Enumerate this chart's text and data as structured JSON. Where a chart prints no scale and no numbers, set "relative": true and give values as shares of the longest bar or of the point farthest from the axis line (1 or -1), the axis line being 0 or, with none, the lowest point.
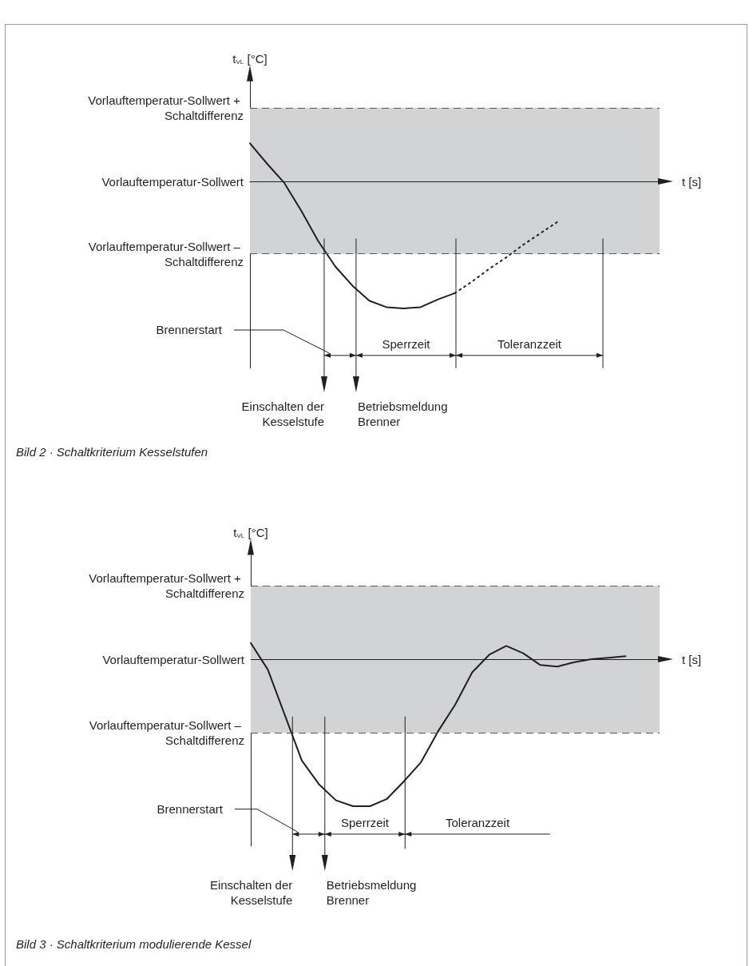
{
  "chart_data": [
    {
      "type": "line",
      "relative": true,
      "title": "Bild 2 · Schaltkriterium Kesselstufen",
      "xlabel": "t [s]",
      "ylabel": "t$_{VL}$ [°C]",
      "marker": "none",
      "line_style": "solid",
      "categories": [
        null,
        null,
        null,
        null,
        null,
        null,
        null,
        null,
        null,
        null,
        null,
        null,
        null,
        null,
        null,
        null,
        null,
        null,
        null,
        null,
        null,
        null,
        null,
        null,
        null
      ],
      "series": [
        {
          "color": "#231f20",
          "values": [
            0.3,
            0.14,
            -0.01,
            -0.23,
            -0.47,
            -0.67,
            -0.82,
            -0.94,
            -0.99,
            -1,
            -0.99,
            -0.93,
            -0.88,
            null,
            null,
            null,
            null,
            null,
            null,
            null,
            null,
            null,
            null,
            null,
            null
          ]
        },
        {
          "color": "#231f20",
          "line_style": "dotted",
          "values": [
            null,
            null,
            null,
            null,
            null,
            null,
            null,
            null,
            null,
            null,
            null,
            null,
            -0.88,
            -0.79,
            -0.69,
            -0.6,
            -0.5,
            -0.41,
            -0.32,
            null,
            null,
            null,
            null,
            null,
            null
          ]
        }
      ],
      "ref_lines": [
        {
          "axis": "y",
          "value": 0.58,
          "label": "Vorlauftemperatur-Sollwert + Schaltdifferenz",
          "line_style": "dashed",
          "color": "#58595b"
        },
        {
          "axis": "y",
          "value": 0,
          "label": "Vorlauftemperatur-Sollwert",
          "line_style": "solid",
          "color": "#231f20"
        },
        {
          "axis": "y",
          "value": -0.57,
          "label": "Vorlauftemperatur-Sollwert – Schaltdifferenz",
          "line_style": "dashed",
          "color": "#58595b"
        }
      ],
      "bands": [
        {
          "axis": "y",
          "from": -0.57,
          "to": 0.58,
          "color": "#d1d3d4"
        }
      ],
      "annotations": [
        "Brennerstart",
        "Sperrzeit",
        "Toleranzzeit",
        "Einschalten der Kesselstufe",
        "Betriebsmeldung Brenner"
      ]
    },
    {
      "type": "line",
      "relative": true,
      "title": "Bild 3 · Schaltkriterium modulierende Kessel",
      "xlabel": "t [s]",
      "ylabel": "t$_{VL}$ [°C]",
      "marker": "none",
      "line_style": "solid",
      "categories": [
        null,
        null,
        null,
        null,
        null,
        null,
        null,
        null,
        null,
        null,
        null,
        null,
        null,
        null,
        null,
        null,
        null,
        null,
        null,
        null,
        null,
        null,
        null,
        null,
        null
      ],
      "series": [
        {
          "color": "#231f20",
          "values": [
            0.11,
            -0.07,
            -0.38,
            -0.69,
            -0.85,
            -0.96,
            -1,
            -1,
            -0.95,
            -0.83,
            -0.7,
            -0.49,
            -0.31,
            -0.09,
            0.03,
            0.09,
            0.04,
            -0.04,
            -0.05,
            -0.02,
            0,
            0.01,
            0.02,
            null,
            null
          ]
        }
      ],
      "ref_lines": [
        {
          "axis": "y",
          "value": 0.5,
          "label": "Vorlauftemperatur-Sollwert + Schaltdifferenz",
          "line_style": "dashed",
          "color": "#58595b"
        },
        {
          "axis": "y",
          "value": 0,
          "label": "Vorlauftemperatur-Sollwert",
          "line_style": "solid",
          "color": "#231f20"
        },
        {
          "axis": "y",
          "value": -0.5,
          "label": "Vorlauftemperatur-Sollwert – Schaltdifferenz",
          "line_style": "dashed",
          "color": "#58595b"
        }
      ],
      "bands": [
        {
          "axis": "y",
          "from": -0.5,
          "to": 0.5,
          "color": "#d1d3d4"
        }
      ],
      "annotations": [
        "Brennerstart",
        "Sperrzeit",
        "Toleranzzeit",
        "Einschalten der Kesselstufe",
        "Betriebsmeldung Brenner"
      ]
    }
  ]
}
